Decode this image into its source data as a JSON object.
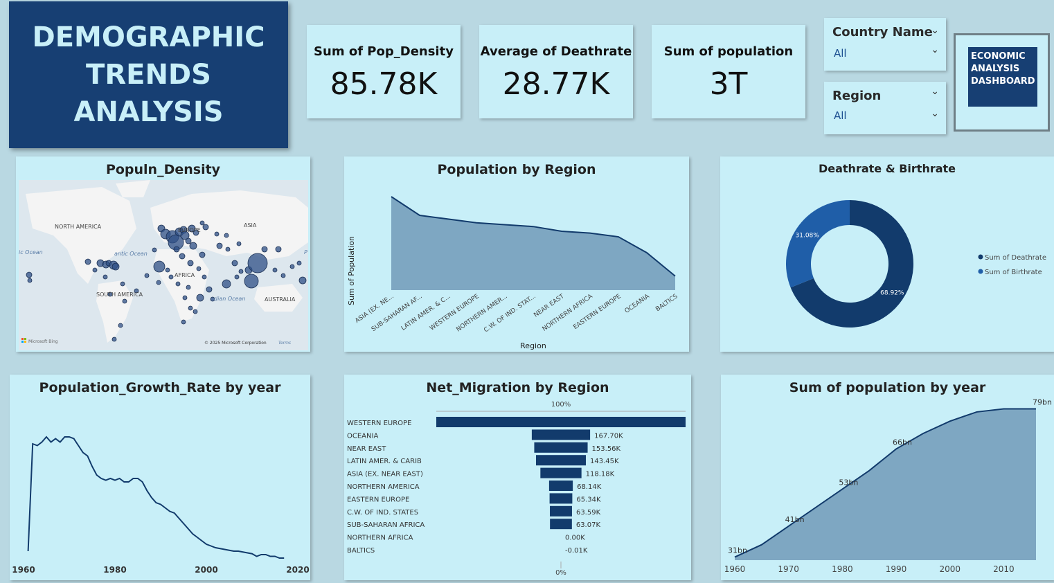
{
  "header": {
    "line1": "DEMOGRAPHIC",
    "line2": "TRENDS",
    "line3": "ANALYSIS"
  },
  "kpis": [
    {
      "label": "Sum of Pop_Density",
      "value": "85.78K"
    },
    {
      "label": "Average of Deathrate",
      "value": "28.77K"
    },
    {
      "label": "Sum of population",
      "value": "3T"
    }
  ],
  "slicers": {
    "country": {
      "title": "Country Name",
      "value": "All"
    },
    "region": {
      "title": "Region",
      "value": "All"
    }
  },
  "nav_button": {
    "line1": "ECONOMIC",
    "line2": "ANALYSIS",
    "line3": "DASHBOARD"
  },
  "map": {
    "title": "Populn_Density",
    "labels": {
      "na": "NORTH AMERICA",
      "asia": "ASIA",
      "europe": "EUROPE",
      "africa": "AFRICA",
      "sa": "SOUTH AMERICA",
      "au": "AUSTRALIA",
      "atl": "antic Ocean",
      "pac": "ic Ocean",
      "ind": "dian Ocean",
      "p": "P"
    },
    "bing": "Microsoft Bing",
    "copyright": "© 2025 Microsoft Corporation",
    "terms": "Terms",
    "colors": {
      "land": "#f4f4f4",
      "water": "#dde7ee",
      "bubble": "#2d4f85"
    }
  },
  "charts": {
    "pop_region": {
      "title": "Population by Region",
      "xlabel": "Region",
      "ylabel": "Sum of Population",
      "chart_data": {
        "type": "area",
        "categories": [
          "ASIA (EX. NE...",
          "SUB-SAHARAN AF...",
          "LATIN AMER. & C...",
          "WESTERN EUROPE",
          "NORTHERN AMER...",
          "C.W. OF IND. STAT...",
          "NEAR EAST",
          "NORTHERN AFRICA",
          "EASTERN EUROPE",
          "OCEANIA",
          "BALTICS"
        ],
        "values": [
          100,
          80,
          76,
          72,
          70,
          68,
          63,
          61,
          57,
          40,
          15
        ]
      }
    },
    "death_birth": {
      "title": "Deathrate & Birthrate",
      "legend": [
        "Sum of Deathrate",
        "Sum of Birthrate"
      ],
      "chart_data": {
        "type": "pie",
        "labels": [
          "Sum of Deathrate",
          "Sum of Birthrate"
        ],
        "values": [
          68.92,
          31.08
        ],
        "display": [
          "68.92%",
          "31.08%"
        ],
        "colors": [
          "#123b6c",
          "#1f5ea8"
        ]
      }
    },
    "growth": {
      "title": "Population_Growth_Rate by year",
      "xticks": [
        "1960",
        "1980",
        "2000",
        "2020"
      ],
      "chart_data": {
        "type": "line",
        "x": [
          1961,
          1962,
          1963,
          1964,
          1965,
          1966,
          1967,
          1968,
          1969,
          1970,
          1971,
          1972,
          1973,
          1974,
          1975,
          1976,
          1977,
          1978,
          1979,
          1980,
          1981,
          1982,
          1983,
          1984,
          1985,
          1986,
          1987,
          1988,
          1989,
          1990,
          1991,
          1992,
          1993,
          1994,
          1995,
          1996,
          1997,
          1998,
          1999,
          2000,
          2001,
          2002,
          2003,
          2004,
          2005,
          2006,
          2007,
          2008,
          2009,
          2010,
          2011,
          2012,
          2013,
          2014,
          2015,
          2016,
          2017
        ],
        "y": [
          0.6,
          6.8,
          6.7,
          6.9,
          7.2,
          6.9,
          7.1,
          6.9,
          7.2,
          7.2,
          7.1,
          6.7,
          6.3,
          6.1,
          5.5,
          5.0,
          4.8,
          4.7,
          4.8,
          4.7,
          4.8,
          4.6,
          4.6,
          4.8,
          4.8,
          4.6,
          4.1,
          3.7,
          3.4,
          3.3,
          3.1,
          2.9,
          2.8,
          2.5,
          2.2,
          1.9,
          1.6,
          1.4,
          1.2,
          1.0,
          0.9,
          0.8,
          0.75,
          0.7,
          0.65,
          0.6,
          0.6,
          0.55,
          0.5,
          0.45,
          0.3,
          0.4,
          0.4,
          0.3,
          0.3,
          0.2,
          0.2
        ],
        "xlim": [
          1960,
          2020
        ],
        "ylim": [
          0,
          8
        ]
      }
    },
    "migration": {
      "title": "Net_Migration by Region",
      "top_label": "100%",
      "bottom_label": "0%",
      "chart_data": {
        "type": "bar",
        "categories": [
          "WESTERN EUROPE",
          "OCEANIA",
          "NEAR EAST",
          "LATIN AMER. & CARIB",
          "ASIA (EX. NEAR EAST)",
          "NORTHERN AMERICA",
          "EASTERN EUROPE",
          "C.W. OF IND. STATES",
          "SUB-SAHARAN AFRICA",
          "NORTHERN AFRICA",
          "BALTICS"
        ],
        "values": [
          717,
          167.7,
          153.56,
          143.45,
          118.18,
          68.14,
          65.34,
          63.59,
          63.07,
          0.0,
          -0.01
        ],
        "labels": [
          "",
          "167.70K",
          "153.56K",
          "143.45K",
          "118.18K",
          "68.14K",
          "65.34K",
          "63.59K",
          "63.07K",
          "0.00K",
          "-0.01K"
        ]
      }
    },
    "pop_year": {
      "title": "Sum of population by year",
      "xticks": [
        "1960",
        "1970",
        "1980",
        "1990",
        "2000",
        "2010"
      ],
      "chart_data": {
        "type": "area",
        "x": [
          1960,
          1965,
          1970,
          1975,
          1980,
          1985,
          1990,
          1995,
          2000,
          2005,
          2010,
          2016
        ],
        "y": [
          31,
          35,
          41,
          47,
          53,
          59,
          66,
          71,
          75,
          78,
          79,
          79
        ],
        "point_labels": [
          {
            "x": 1960,
            "y": 31,
            "text": "31bn"
          },
          {
            "x": 1970,
            "y": 41,
            "text": "41bn"
          },
          {
            "x": 1980,
            "y": 53,
            "text": "53bn"
          },
          {
            "x": 1990,
            "y": 66,
            "text": "66bn"
          },
          {
            "x": 2016,
            "y": 79,
            "text": "79bn"
          }
        ],
        "xlim": [
          1960,
          2016
        ],
        "ylim": [
          30,
          80
        ]
      }
    }
  }
}
